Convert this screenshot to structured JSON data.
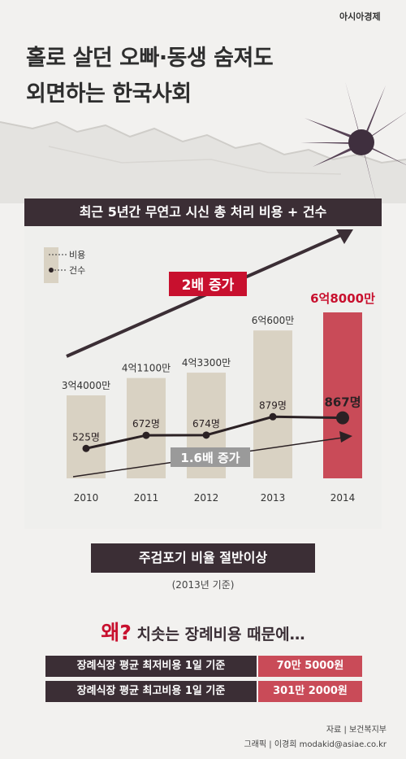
{
  "brand": "아시아경제",
  "headline": [
    "홀로 살던 오빠·동생 숨져도",
    "외면하는 한국사회"
  ],
  "chart_data": {
    "type": "bar",
    "title": "최근 5년간 무연고 시신 총 처리 비용 + 건수",
    "legend": [
      "비용",
      "건수"
    ],
    "categories": [
      "2010",
      "2011",
      "2012",
      "2013",
      "2014"
    ],
    "series": [
      {
        "name": "비용",
        "values": [
          34000,
          41100,
          43300,
          60600,
          68000
        ],
        "labels": [
          "3억4000만",
          "4억1100만",
          "4억3300만",
          "6억600만",
          "6억8000만"
        ]
      },
      {
        "name": "건수",
        "values": [
          525,
          672,
          674,
          879,
          867
        ],
        "labels": [
          "525명",
          "672명",
          "674명",
          "879명",
          "867명"
        ]
      }
    ],
    "annotations": [
      "2배 증가",
      "1.6배 증가"
    ],
    "colors": {
      "bar": "#d9d2c3",
      "bar_highlight": "#c94b58",
      "line": "#2b2124",
      "arrow_cost": "#3b2e35",
      "badge": "#c8102e",
      "badge_grey": "#9a9a9a"
    }
  },
  "sub_title": "주검포기 비율 절반이상",
  "sub_note": "(2013년 기준)",
  "reason": {
    "accent": "왜?",
    "text": "치솟는 장례비용 때문에…"
  },
  "costs": [
    {
      "label": "장례식장 평균 최저비용 1일 기준",
      "value": "70만 5000원"
    },
    {
      "label": "장례식장 평균 최고비용 1일 기준",
      "value": "301만 2000원"
    }
  ],
  "footer": {
    "source": "자료 | 보건복지부",
    "credit": "그래픽 | 이경희 modakid@asiae.co.kr"
  }
}
